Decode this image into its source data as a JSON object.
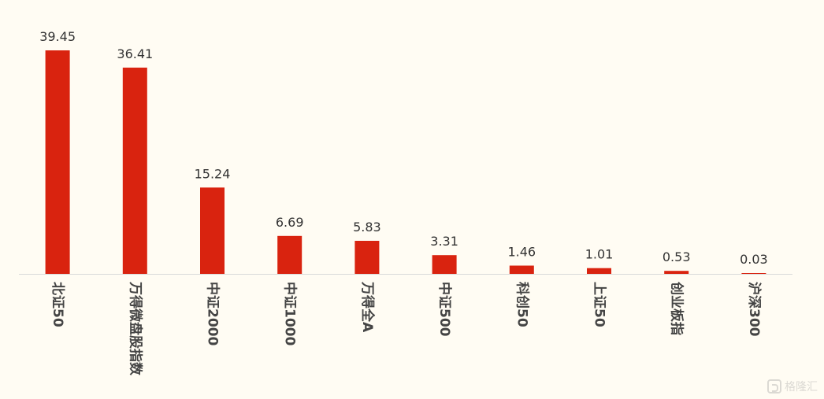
{
  "chart_data": {
    "type": "bar",
    "categories": [
      "北证50",
      "万得微盘股指数",
      "中证2000",
      "中证1000",
      "万得全A",
      "中证500",
      "科创50",
      "上证50",
      "创业板指",
      "沪深300"
    ],
    "values": [
      39.45,
      36.41,
      15.24,
      6.69,
      5.83,
      3.31,
      1.46,
      1.01,
      0.53,
      0.03
    ],
    "value_labels": [
      "39.45",
      "36.41",
      "15.24",
      "6.69",
      "5.83",
      "3.31",
      "1.46",
      "1.01",
      "0.53",
      "0.03"
    ],
    "ylim": [
      0,
      39.45
    ],
    "grid": false,
    "bar_color": "#d9230f",
    "axis_color": "#d9d9d9",
    "label_orientation": "vertical"
  },
  "watermark": {
    "text": "格隆汇",
    "icon": "gelonghui-logo-icon"
  }
}
